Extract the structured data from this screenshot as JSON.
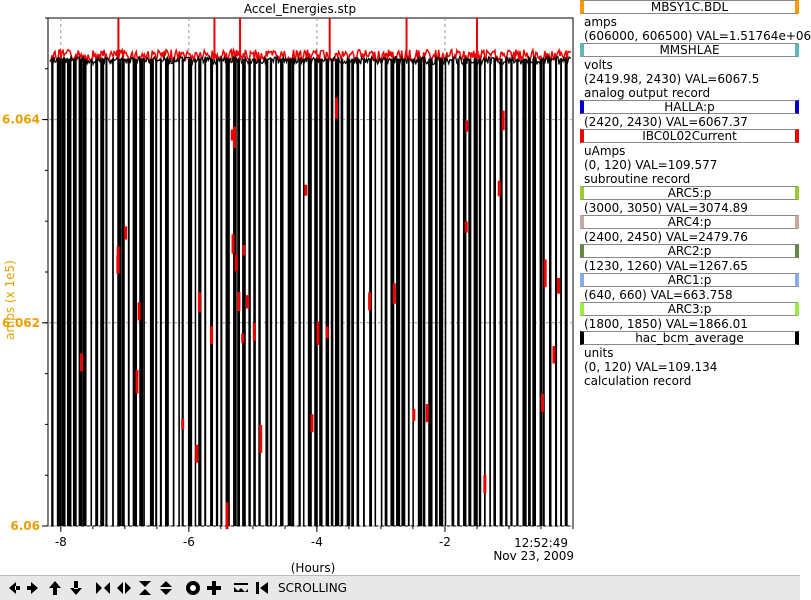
{
  "title": "Accel_Energies.stp",
  "chart_data": {
    "type": "line",
    "title": "Accel_Energies.stp",
    "xlabel": "(Hours)",
    "ylabel": "amps (x 1e5)",
    "xlim": [
      -8.2,
      0
    ],
    "ylim": [
      6.06,
      6.065
    ],
    "x_ticks": [
      -8,
      -6,
      -4,
      -2
    ],
    "x_tick_labels": [
      "-8",
      "-6",
      "-4",
      "-2"
    ],
    "y_ticks": [
      6.06,
      6.062,
      6.064
    ],
    "y_tick_labels": [
      "6.06",
      "6.062",
      "6.064"
    ],
    "end_time": "12:52:49",
    "end_date": "Nov 23, 2009",
    "grid": true,
    "baseline": 6.0646,
    "series": [
      {
        "color": "#ee0000",
        "values_note": "",
        "dips_to": [
          6.0617,
          6.0622,
          6.0608,
          6.062,
          6.0611,
          6.0623,
          6.0612,
          6.0605,
          6.0613
        ]
      },
      {
        "color": "#000000",
        "dips_to": [
          6.06
        ]
      }
    ],
    "vertical_marker": {
      "x": -7.1,
      "color": "#7090e0"
    }
  },
  "legend": [
    {
      "name": "MBSY1C.BDL",
      "color": "#ff9900",
      "lines": [
        "amps",
        "(606000, 606500)  VAL=1.51764e+06"
      ]
    },
    {
      "name": "MMSHLAE",
      "color": "#5fb8b8",
      "lines": [
        "volts",
        "(2419.98, 2430) VAL=6067.5",
        "analog output record"
      ]
    },
    {
      "name": "HALLA:p",
      "color": "#0000cc",
      "lines": [
        "(2420, 2430) VAL=6067.37"
      ]
    },
    {
      "name": "IBC0L02Current",
      "color": "#ee0000",
      "lines": [
        "uAmps",
        "(0, 120) VAL=109.577",
        "subroutine record"
      ]
    },
    {
      "name": "ARC5:p",
      "color": "#99cc33",
      "lines": [
        "(3000, 3050) VAL=3074.89"
      ]
    },
    {
      "name": "ARC4:p",
      "color": "#c8a8a0",
      "lines": [
        "(2400, 2450) VAL=2479.76"
      ]
    },
    {
      "name": "ARC2:p",
      "color": "#668844",
      "lines": [
        "(1230, 1260) VAL=1267.65"
      ]
    },
    {
      "name": "ARC1:p",
      "color": "#88aaee",
      "lines": [
        "(640, 660) VAL=663.758"
      ]
    },
    {
      "name": "ARC3:p",
      "color": "#99ee44",
      "lines": [
        "(1800, 1850) VAL=1866.01"
      ]
    },
    {
      "name": "hac_bcm_average",
      "color": "#000000",
      "lines": [
        "units",
        "(0, 120) VAL=109.134",
        "calculation record"
      ]
    }
  ],
  "toolbar": {
    "buttons": [
      "arrow-left-icon",
      "arrow-right-icon",
      "arrow-up-icon",
      "arrow-down-icon",
      "compress-horizontal-icon",
      "expand-horizontal-icon",
      "compress-vertical-icon",
      "expand-vertical-icon",
      "record-icon",
      "plus-icon",
      "autoscale-icon",
      "back-icon"
    ],
    "mode_label": "SCROLLING"
  }
}
